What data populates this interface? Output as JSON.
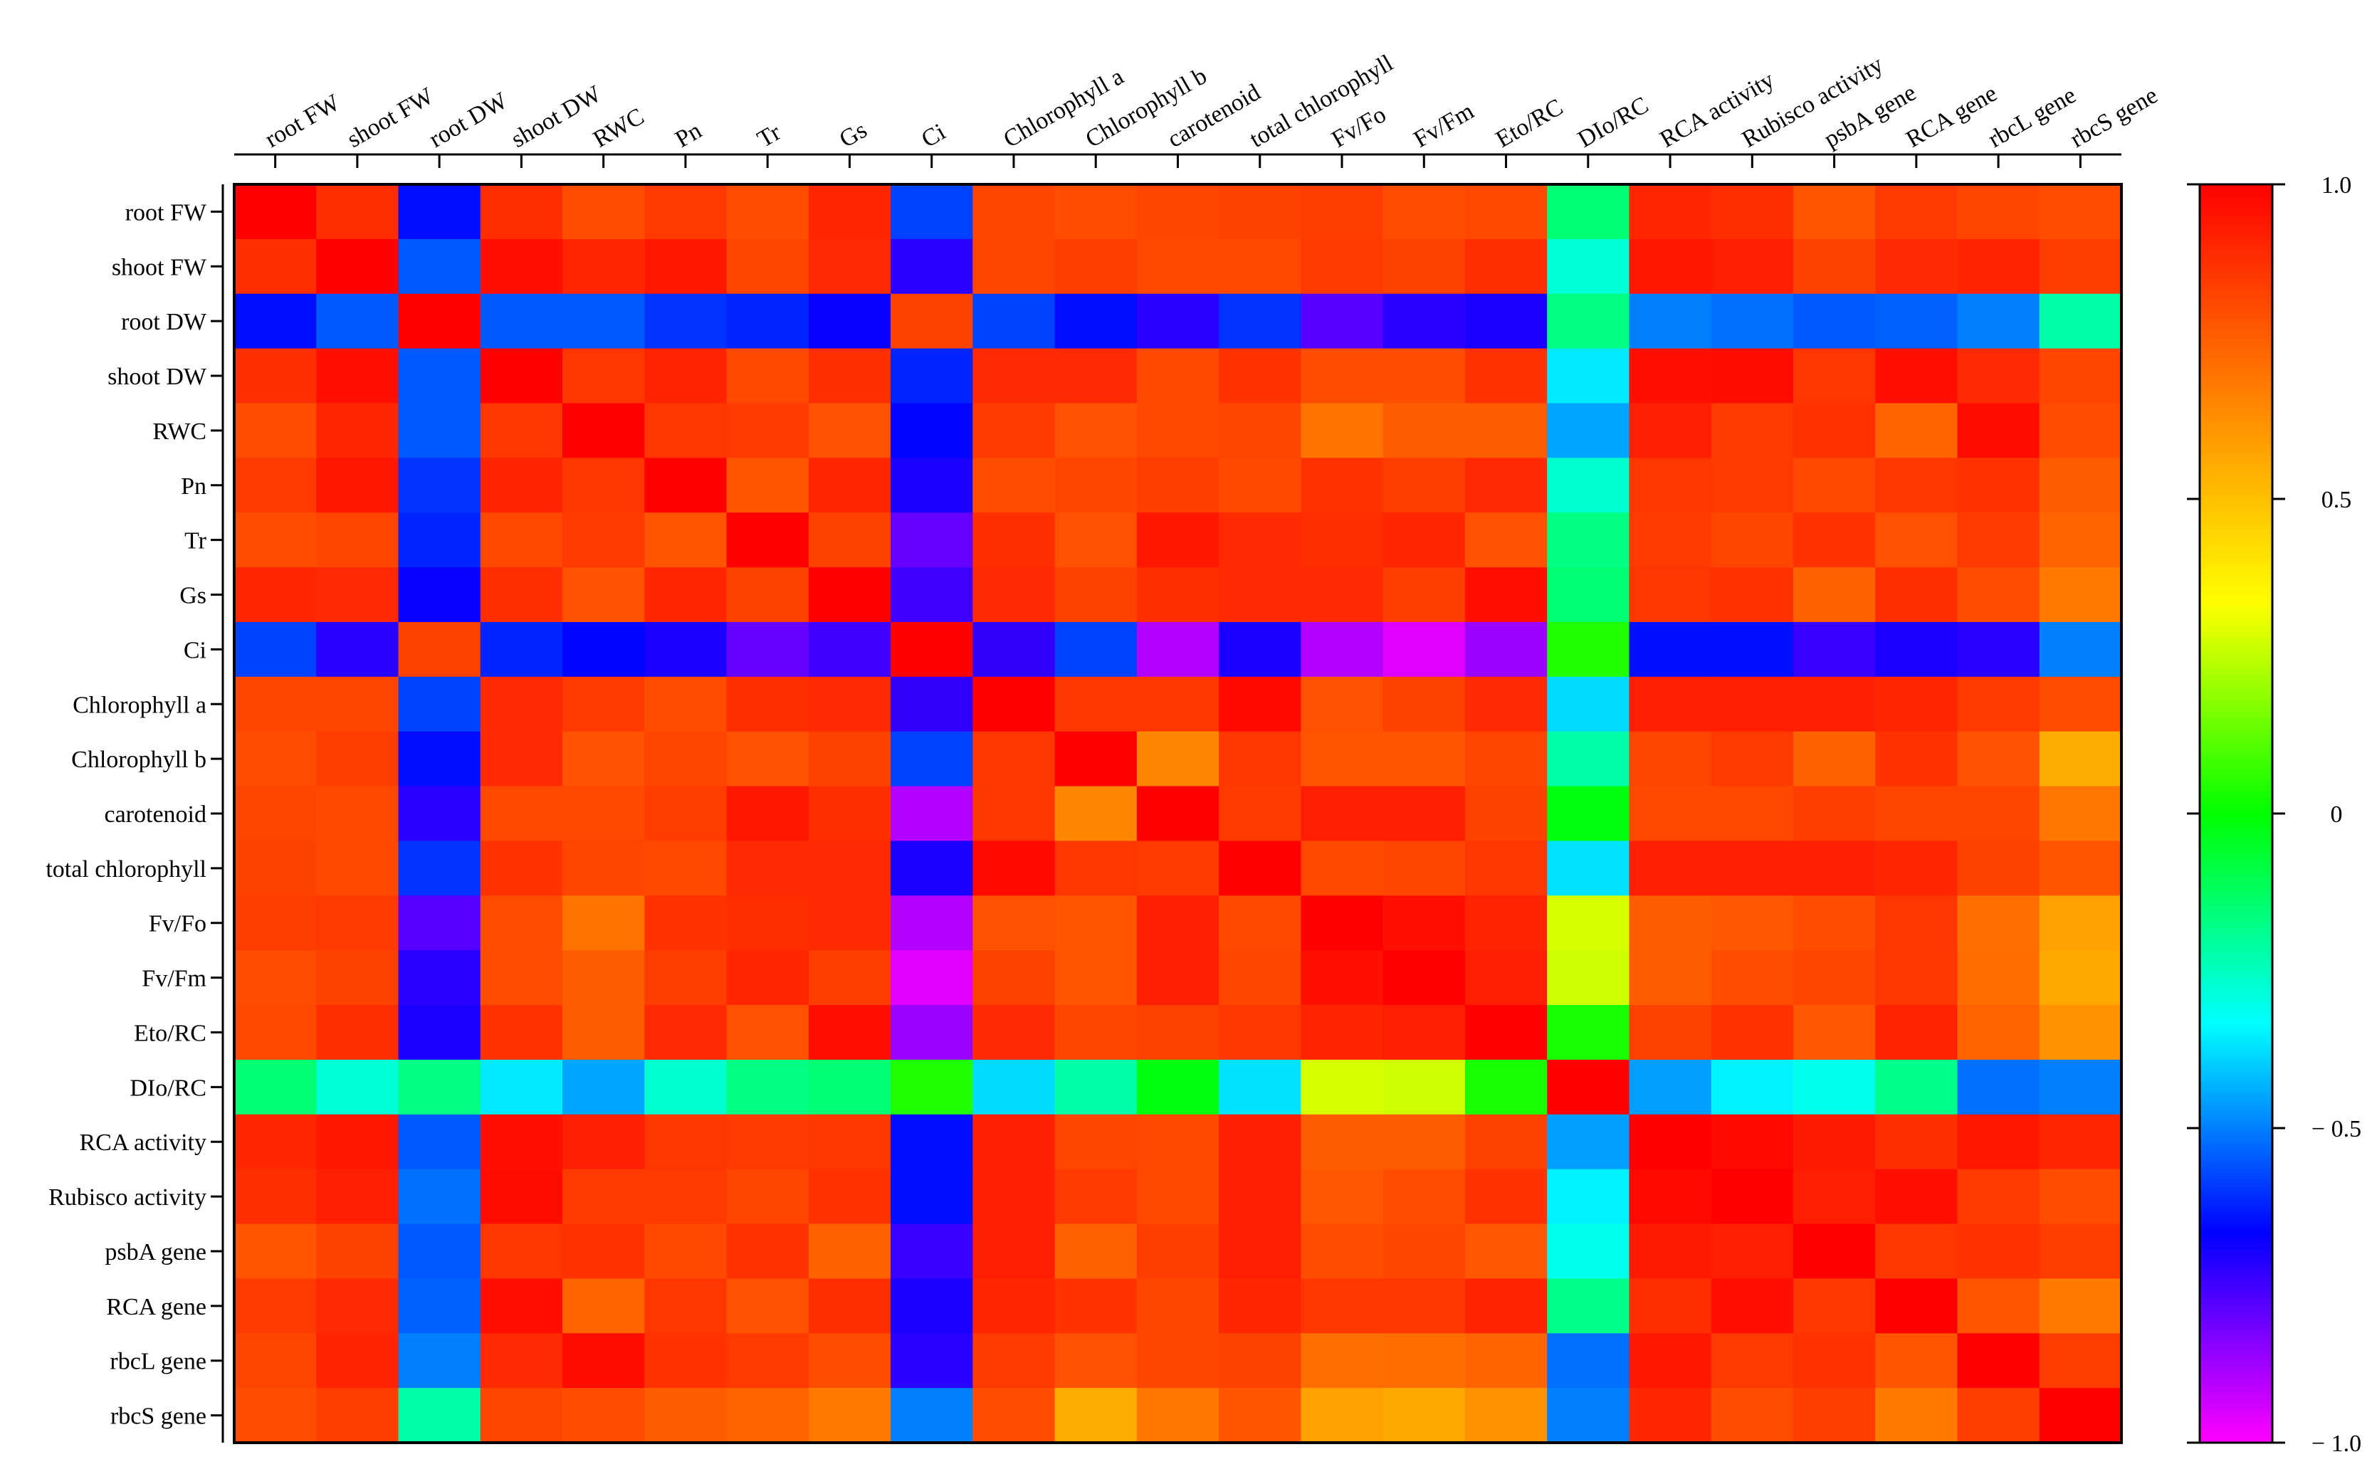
{
  "chart_data": {
    "type": "heatmap",
    "title": "",
    "xlabel": "",
    "ylabel": "",
    "x_labels": [
      "root FW",
      "shoot FW",
      "root DW",
      "shoot DW",
      "RWC",
      "Pn",
      "Tr",
      "Gs",
      "Ci",
      "Chlorophyll a",
      "Chlorophyll b",
      "carotenoid",
      "total chlorophyll",
      "Fv/Fo",
      "Fv/Fm",
      "Eto/RC",
      "DIo/RC",
      "RCA activity",
      "Rubisco activity",
      "psbA gene",
      "RCA gene",
      "rbcL gene",
      "rbcS gene"
    ],
    "y_labels": [
      "root FW",
      "shoot FW",
      "root DW",
      "shoot DW",
      "RWC",
      "Pn",
      "Tr",
      "Gs",
      "Ci",
      "Chlorophyll a",
      "Chlorophyll b",
      "carotenoid",
      "total chlorophyll",
      "Fv/Fo",
      "Fv/Fm",
      "Eto/RC",
      "DIo/RC",
      "RCA activity",
      "Rubisco activity",
      "psbA gene",
      "RCA gene",
      "rbcL gene",
      "rbcS gene"
    ],
    "values": [
      [
        1.0,
        0.88,
        -0.65,
        0.88,
        0.8,
        0.85,
        0.8,
        0.9,
        -0.58,
        0.82,
        0.8,
        0.82,
        0.83,
        0.84,
        0.8,
        0.81,
        -0.15,
        0.9,
        0.88,
        0.78,
        0.85,
        0.82,
        0.8
      ],
      [
        0.88,
        1.0,
        -0.55,
        0.96,
        0.9,
        0.94,
        0.82,
        0.89,
        -0.72,
        0.82,
        0.84,
        0.81,
        0.81,
        0.85,
        0.83,
        0.88,
        -0.28,
        0.94,
        0.92,
        0.83,
        0.89,
        0.91,
        0.84
      ],
      [
        -0.65,
        -0.55,
        1.0,
        -0.55,
        -0.55,
        -0.6,
        -0.62,
        -0.68,
        0.83,
        -0.58,
        -0.65,
        -0.72,
        -0.6,
        -0.78,
        -0.72,
        -0.7,
        -0.17,
        -0.5,
        -0.52,
        -0.55,
        -0.54,
        -0.5,
        -0.22
      ],
      [
        0.88,
        0.96,
        -0.55,
        1.0,
        0.86,
        0.91,
        0.81,
        0.88,
        -0.62,
        0.89,
        0.89,
        0.81,
        0.87,
        0.8,
        0.8,
        0.87,
        -0.36,
        0.96,
        0.97,
        0.86,
        0.96,
        0.89,
        0.82
      ],
      [
        0.8,
        0.9,
        -0.55,
        0.86,
        1.0,
        0.86,
        0.85,
        0.79,
        -0.66,
        0.85,
        0.79,
        0.81,
        0.82,
        0.7,
        0.76,
        0.76,
        -0.45,
        0.92,
        0.85,
        0.87,
        0.74,
        0.97,
        0.8
      ],
      [
        0.85,
        0.94,
        -0.6,
        0.91,
        0.86,
        1.0,
        0.78,
        0.9,
        -0.7,
        0.8,
        0.82,
        0.84,
        0.81,
        0.87,
        0.84,
        0.89,
        -0.27,
        0.86,
        0.85,
        0.81,
        0.86,
        0.87,
        0.76
      ],
      [
        0.8,
        0.82,
        -0.62,
        0.81,
        0.85,
        0.78,
        1.0,
        0.83,
        -0.8,
        0.88,
        0.79,
        0.94,
        0.89,
        0.88,
        0.9,
        0.79,
        -0.17,
        0.85,
        0.82,
        0.87,
        0.79,
        0.85,
        0.74
      ],
      [
        0.9,
        0.89,
        -0.68,
        0.88,
        0.79,
        0.9,
        0.83,
        1.0,
        -0.75,
        0.89,
        0.83,
        0.88,
        0.89,
        0.89,
        0.84,
        0.96,
        -0.15,
        0.86,
        0.87,
        0.75,
        0.88,
        0.8,
        0.68
      ],
      [
        -0.58,
        -0.72,
        0.83,
        -0.62,
        -0.66,
        -0.7,
        -0.8,
        -0.75,
        1.0,
        -0.73,
        -0.58,
        -0.9,
        -0.7,
        -0.9,
        -0.96,
        -0.87,
        0.04,
        -0.65,
        -0.65,
        -0.74,
        -0.7,
        -0.72,
        -0.5
      ],
      [
        0.82,
        0.82,
        -0.58,
        0.89,
        0.85,
        0.8,
        0.88,
        0.89,
        -0.73,
        1.0,
        0.86,
        0.86,
        0.98,
        0.79,
        0.83,
        0.89,
        -0.38,
        0.92,
        0.92,
        0.92,
        0.9,
        0.85,
        0.8
      ],
      [
        0.8,
        0.84,
        -0.65,
        0.89,
        0.79,
        0.82,
        0.79,
        0.83,
        -0.58,
        0.86,
        1.0,
        0.65,
        0.86,
        0.78,
        0.78,
        0.82,
        -0.22,
        0.82,
        0.85,
        0.75,
        0.87,
        0.79,
        0.55
      ],
      [
        0.82,
        0.81,
        -0.72,
        0.81,
        0.81,
        0.84,
        0.94,
        0.88,
        -0.9,
        0.86,
        0.65,
        1.0,
        0.85,
        0.92,
        0.92,
        0.83,
        -0.02,
        0.81,
        0.81,
        0.84,
        0.82,
        0.82,
        0.69
      ],
      [
        0.83,
        0.81,
        -0.6,
        0.87,
        0.82,
        0.81,
        0.89,
        0.89,
        -0.7,
        0.98,
        0.86,
        0.85,
        1.0,
        0.81,
        0.82,
        0.86,
        -0.37,
        0.92,
        0.92,
        0.92,
        0.9,
        0.83,
        0.78
      ],
      [
        0.84,
        0.85,
        -0.78,
        0.8,
        0.7,
        0.87,
        0.88,
        0.89,
        -0.9,
        0.79,
        0.78,
        0.92,
        0.81,
        1.0,
        0.96,
        0.91,
        0.28,
        0.76,
        0.77,
        0.8,
        0.86,
        0.71,
        0.58
      ],
      [
        0.8,
        0.83,
        -0.72,
        0.8,
        0.76,
        0.84,
        0.9,
        0.84,
        -0.96,
        0.83,
        0.78,
        0.92,
        0.82,
        0.96,
        1.0,
        0.92,
        0.27,
        0.76,
        0.8,
        0.82,
        0.86,
        0.72,
        0.56
      ],
      [
        0.81,
        0.88,
        -0.7,
        0.87,
        0.76,
        0.89,
        0.79,
        0.96,
        -0.87,
        0.89,
        0.82,
        0.83,
        0.86,
        0.91,
        0.92,
        1.0,
        0.03,
        0.83,
        0.87,
        0.77,
        0.91,
        0.74,
        0.62
      ],
      [
        -0.15,
        -0.28,
        -0.17,
        -0.36,
        -0.45,
        -0.27,
        -0.17,
        -0.15,
        0.04,
        -0.38,
        -0.22,
        -0.02,
        -0.37,
        0.28,
        0.27,
        0.03,
        1.0,
        -0.46,
        -0.35,
        -0.31,
        -0.18,
        -0.52,
        -0.5
      ],
      [
        0.9,
        0.94,
        -0.55,
        0.96,
        0.92,
        0.86,
        0.85,
        0.86,
        -0.65,
        0.92,
        0.82,
        0.81,
        0.92,
        0.76,
        0.76,
        0.83,
        -0.46,
        1.0,
        0.98,
        0.93,
        0.88,
        0.94,
        0.9
      ],
      [
        0.88,
        0.92,
        -0.52,
        0.97,
        0.85,
        0.85,
        0.82,
        0.87,
        -0.65,
        0.92,
        0.85,
        0.81,
        0.92,
        0.77,
        0.8,
        0.87,
        -0.35,
        0.98,
        1.0,
        0.92,
        0.96,
        0.85,
        0.8
      ],
      [
        0.78,
        0.83,
        -0.55,
        0.86,
        0.87,
        0.81,
        0.87,
        0.75,
        -0.74,
        0.92,
        0.75,
        0.84,
        0.92,
        0.8,
        0.82,
        0.77,
        -0.31,
        0.93,
        0.92,
        1.0,
        0.86,
        0.87,
        0.84
      ],
      [
        0.85,
        0.89,
        -0.54,
        0.96,
        0.74,
        0.86,
        0.79,
        0.88,
        -0.7,
        0.9,
        0.87,
        0.82,
        0.9,
        0.86,
        0.86,
        0.91,
        -0.18,
        0.88,
        0.96,
        0.86,
        1.0,
        0.78,
        0.68
      ],
      [
        0.82,
        0.91,
        -0.5,
        0.89,
        0.97,
        0.87,
        0.85,
        0.8,
        -0.72,
        0.85,
        0.79,
        0.82,
        0.83,
        0.71,
        0.72,
        0.74,
        -0.52,
        0.94,
        0.85,
        0.87,
        0.78,
        1.0,
        0.84
      ],
      [
        0.8,
        0.84,
        -0.22,
        0.82,
        0.8,
        0.76,
        0.74,
        0.68,
        -0.5,
        0.8,
        0.55,
        0.69,
        0.78,
        0.58,
        0.56,
        0.62,
        -0.5,
        0.9,
        0.8,
        0.84,
        0.68,
        0.84,
        1.0
      ]
    ],
    "colorbar": {
      "range": [
        -1.0,
        1.0
      ],
      "tick_values": [
        1.0,
        0.5,
        0,
        -0.5,
        -1.0
      ],
      "tick_labels": [
        "1.0",
        "0.5",
        "0",
        "− 0.5",
        "− 1.0"
      ],
      "colors": [
        "#ff00ff",
        "#0000ff",
        "#00ffff",
        "#00ff00",
        "#ffff00",
        "#ff8000",
        "#ff0000"
      ]
    },
    "legend_position": "right"
  }
}
